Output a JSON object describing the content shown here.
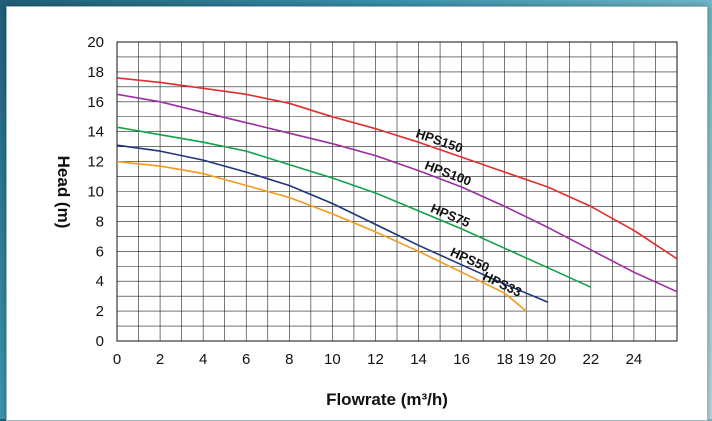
{
  "chart_data": {
    "type": "line",
    "xlabel": "Flowrate (m³/h)",
    "ylabel": "Head (m)",
    "xlim": [
      0,
      26
    ],
    "ylim": [
      0,
      20
    ],
    "x_ticks": [
      0,
      2,
      4,
      6,
      8,
      10,
      12,
      14,
      16,
      18,
      19,
      20,
      22,
      24
    ],
    "y_ticks": [
      0,
      2,
      4,
      6,
      8,
      10,
      12,
      14,
      16,
      18,
      20
    ],
    "grid": true,
    "legend": "none",
    "series": [
      {
        "name": "HPS150",
        "color": "#e22d2d",
        "x": [
          0,
          2,
          4,
          6,
          8,
          10,
          12,
          14,
          16,
          18,
          20,
          22,
          24,
          26
        ],
        "y": [
          17.6,
          17.3,
          16.9,
          16.5,
          15.9,
          15.0,
          14.2,
          13.3,
          12.3,
          11.3,
          10.3,
          9.0,
          7.4,
          5.5
        ]
      },
      {
        "name": "HPS100",
        "color": "#9a2f9f",
        "x": [
          0,
          2,
          4,
          6,
          8,
          10,
          12,
          14,
          16,
          18,
          20,
          22,
          24,
          26
        ],
        "y": [
          16.5,
          16.0,
          15.3,
          14.6,
          13.9,
          13.2,
          12.4,
          11.4,
          10.3,
          9.0,
          7.6,
          6.1,
          4.6,
          3.3
        ]
      },
      {
        "name": "HPS75",
        "color": "#13a14a",
        "x": [
          0,
          2,
          4,
          6,
          8,
          10,
          12,
          14,
          16,
          18,
          20,
          22
        ],
        "y": [
          14.3,
          13.8,
          13.3,
          12.7,
          11.8,
          10.9,
          9.9,
          8.7,
          7.5,
          6.2,
          4.9,
          3.6
        ]
      },
      {
        "name": "HPS50",
        "color": "#20347d",
        "x": [
          0,
          2,
          4,
          6,
          8,
          10,
          12,
          14,
          16,
          18,
          20
        ],
        "y": [
          13.1,
          12.7,
          12.1,
          11.3,
          10.4,
          9.2,
          7.8,
          6.4,
          5.1,
          3.8,
          2.6
        ]
      },
      {
        "name": "HPS33",
        "color": "#f29a1d",
        "x": [
          0,
          2,
          4,
          6,
          8,
          10,
          12,
          14,
          16,
          18,
          19
        ],
        "y": [
          12.0,
          11.7,
          11.2,
          10.4,
          9.6,
          8.5,
          7.3,
          6.0,
          4.6,
          3.2,
          2.0
        ]
      }
    ]
  }
}
